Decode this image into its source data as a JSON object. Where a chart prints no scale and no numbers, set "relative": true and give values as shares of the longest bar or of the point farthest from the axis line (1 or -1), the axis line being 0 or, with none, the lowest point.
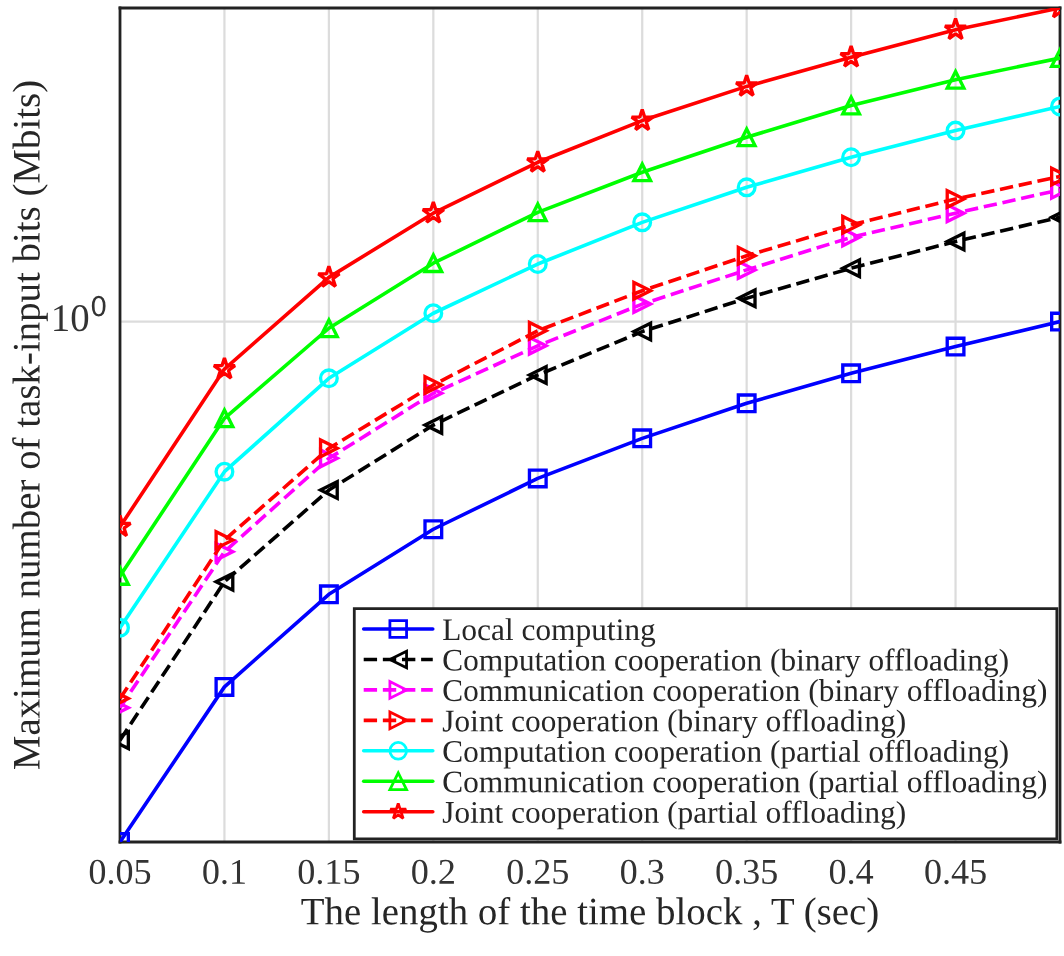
{
  "chart_data": {
    "type": "line",
    "relative": true,
    "xlabel": "The length of the time block , T (sec)",
    "ylabel": "Maximum number of task-input bits (Mbits)",
    "x": [
      0.05,
      0.1,
      0.15,
      0.2,
      0.25,
      0.3,
      0.35,
      0.4,
      0.45,
      0.5
    ],
    "xlim": [
      0.05,
      0.5
    ],
    "xticks": [
      0.05,
      0.1,
      0.15,
      0.2,
      0.25,
      0.3,
      0.35,
      0.4,
      0.45
    ],
    "grid": "x",
    "legend": "bottom right",
    "ref_lines": [
      {
        "axis": "y",
        "value": 0.624,
        "color": "#dcdcdc"
      }
    ],
    "annotations": [
      "10$^{0}$"
    ],
    "series": [
      {
        "name": "Local computing",
        "color": "#0000ff",
        "marker": "square",
        "line_style": "solid",
        "values": [
          0,
          0.186,
          0.297,
          0.375,
          0.436,
          0.484,
          0.526,
          0.562,
          0.594,
          0.624
        ]
      },
      {
        "name": "Computation cooperation (binary offloading)",
        "color": "#000000",
        "marker": "triangle-left",
        "line_style": "dashed",
        "values": [
          0.122,
          0.312,
          0.422,
          0.5,
          0.56,
          0.612,
          0.652,
          0.688,
          0.72,
          0.749
        ]
      },
      {
        "name": "Communication cooperation (binary offloading)",
        "color": "#ff00ff",
        "marker": "triangle-right",
        "line_style": "dashed",
        "values": [
          0.161,
          0.348,
          0.46,
          0.538,
          0.595,
          0.645,
          0.686,
          0.725,
          0.754,
          0.782
        ]
      },
      {
        "name": "Joint cooperation (binary offloading)",
        "color": "#ff0000",
        "marker": "triangle-right",
        "line_style": "dashed",
        "values": [
          0.172,
          0.362,
          0.472,
          0.548,
          0.613,
          0.661,
          0.703,
          0.74,
          0.771,
          0.798
        ]
      },
      {
        "name": "Computation cooperation (partial offloading)",
        "color": "#00ffff",
        "marker": "circle",
        "line_style": "solid",
        "values": [
          0.257,
          0.444,
          0.556,
          0.634,
          0.693,
          0.743,
          0.785,
          0.821,
          0.853,
          0.882
        ]
      },
      {
        "name": "Communication cooperation (partial offloading)",
        "color": "#00ff00",
        "marker": "triangle",
        "line_style": "solid",
        "values": [
          0.319,
          0.508,
          0.616,
          0.694,
          0.755,
          0.803,
          0.845,
          0.883,
          0.914,
          0.94
        ]
      },
      {
        "name": "Joint cooperation (partial offloading)",
        "color": "#ff0000",
        "marker": "star",
        "line_style": "solid",
        "values": [
          0.378,
          0.567,
          0.677,
          0.754,
          0.815,
          0.865,
          0.906,
          0.941,
          0.974,
          1
        ]
      }
    ]
  }
}
